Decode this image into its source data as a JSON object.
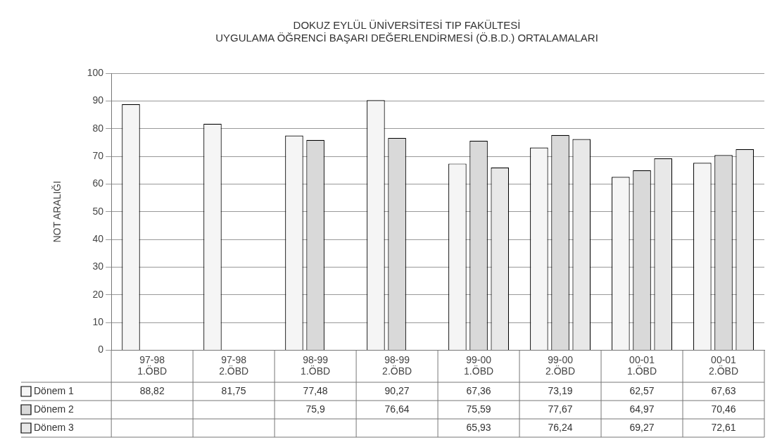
{
  "chart_data": {
    "type": "bar",
    "title": [
      "DOKUZ EYLÜL ÜNİVERSİTESİ TIP FAKÜLTESİ",
      "UYGULAMA ÖĞRENCİ BAŞARI DEĞERLENDİRMESİ (Ö.B.D.) ORTALAMALARI"
    ],
    "ylabel": "NOT ARALIĞI",
    "categories": [
      "97-98 1.ÖBD",
      "97-98 2.ÖBD",
      "98-99 1.ÖBD",
      "98-99 2.ÖBD",
      "99-00 1.ÖBD",
      "99-00 2.ÖBD",
      "00-01 1.ÖBD",
      "00-01 2.ÖBD"
    ],
    "series": [
      {
        "name": "Dönem 1",
        "color": "#f5f5f5",
        "values": [
          88.82,
          81.75,
          77.48,
          90.27,
          67.36,
          73.19,
          62.57,
          67.63
        ],
        "value_labels": [
          "88,82",
          "81,75",
          "77,48",
          "90,27",
          "67,36",
          "73,19",
          "62,57",
          "67,63"
        ]
      },
      {
        "name": "Dönem 2",
        "color": "#d9d9d9",
        "values": [
          null,
          null,
          75.9,
          76.64,
          75.59,
          77.67,
          64.97,
          70.46
        ],
        "value_labels": [
          null,
          null,
          "75,9",
          "76,64",
          "75,59",
          "77,67",
          "64,97",
          "70,46"
        ]
      },
      {
        "name": "Dönem 3",
        "color": "#e8e8e8",
        "values": [
          null,
          null,
          null,
          null,
          65.93,
          76.24,
          69.27,
          72.61
        ],
        "value_labels": [
          null,
          null,
          null,
          null,
          "65,93",
          "76,24",
          "69,27",
          "72,61"
        ]
      }
    ],
    "ylim": [
      0,
      100
    ],
    "yticks": [
      0,
      10,
      20,
      30,
      40,
      50,
      60,
      70,
      80,
      90,
      100
    ],
    "grid": "y",
    "legend": "bottom left",
    "data_labels": true
  }
}
